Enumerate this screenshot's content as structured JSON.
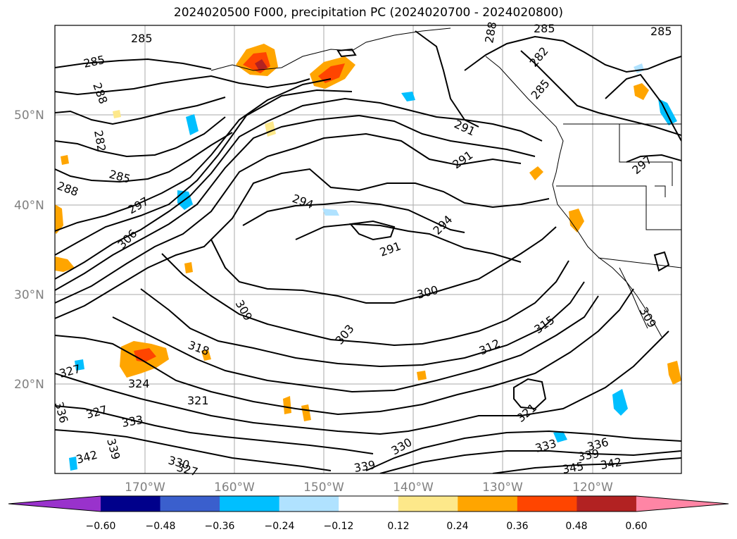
{
  "title": "2024020500 F000, precipitation PC (2024020700 - 2024020800)",
  "map": {
    "lat_labels": [
      "50°N",
      "40°N",
      "30°N",
      "20°N"
    ],
    "lon_labels": [
      "170°W",
      "160°W",
      "150°W",
      "140°W",
      "130°W",
      "120°W"
    ],
    "contour_labels": [
      "285",
      "285",
      "285",
      "285",
      "288",
      "282",
      "285",
      "288",
      "297",
      "306",
      "294",
      "291",
      "291",
      "291",
      "294",
      "300",
      "303",
      "309",
      "315",
      "312",
      "318",
      "327",
      "324",
      "321",
      "327",
      "333",
      "336",
      "339",
      "342",
      "330",
      "327",
      "339",
      "330",
      "321",
      "333",
      "336",
      "339",
      "342",
      "345",
      "309",
      "282",
      "285",
      "297",
      "288"
    ]
  },
  "colorbar": {
    "ticks": [
      "−0.60",
      "−0.48",
      "−0.36",
      "−0.24",
      "−0.12",
      "0.12",
      "0.24",
      "0.36",
      "0.48",
      "0.60"
    ],
    "colors": [
      "#9932cc",
      "#00008b",
      "#3a5fcd",
      "#00bfff",
      "#b0e2ff",
      "#ffffff",
      "#fde88a",
      "#ffa500",
      "#ff4500",
      "#b22222",
      "#ff85a5"
    ]
  }
}
